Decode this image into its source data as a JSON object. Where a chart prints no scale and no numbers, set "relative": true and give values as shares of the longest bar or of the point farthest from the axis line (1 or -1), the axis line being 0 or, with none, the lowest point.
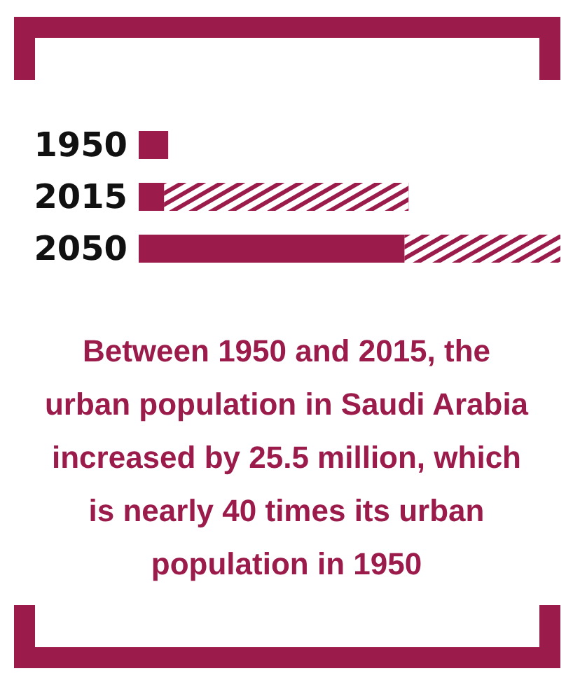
{
  "chart_data": {
    "type": "bar",
    "orientation": "horizontal",
    "stacked": true,
    "relative": true,
    "categories": [
      "1950",
      "2015",
      "2050"
    ],
    "series": [
      {
        "color": "#9b1b4a",
        "values": [
          0.07,
          0.06,
          0.63
        ]
      },
      {
        "color": "#9b1b4a",
        "values": [
          null,
          0.58,
          0.37
        ]
      }
    ],
    "annotations": [
      "Between 1950 and 2015, the urban population in Saudi Arabia increased by 25.5 million, which is nearly 40 times its urban population in 1950"
    ]
  }
}
